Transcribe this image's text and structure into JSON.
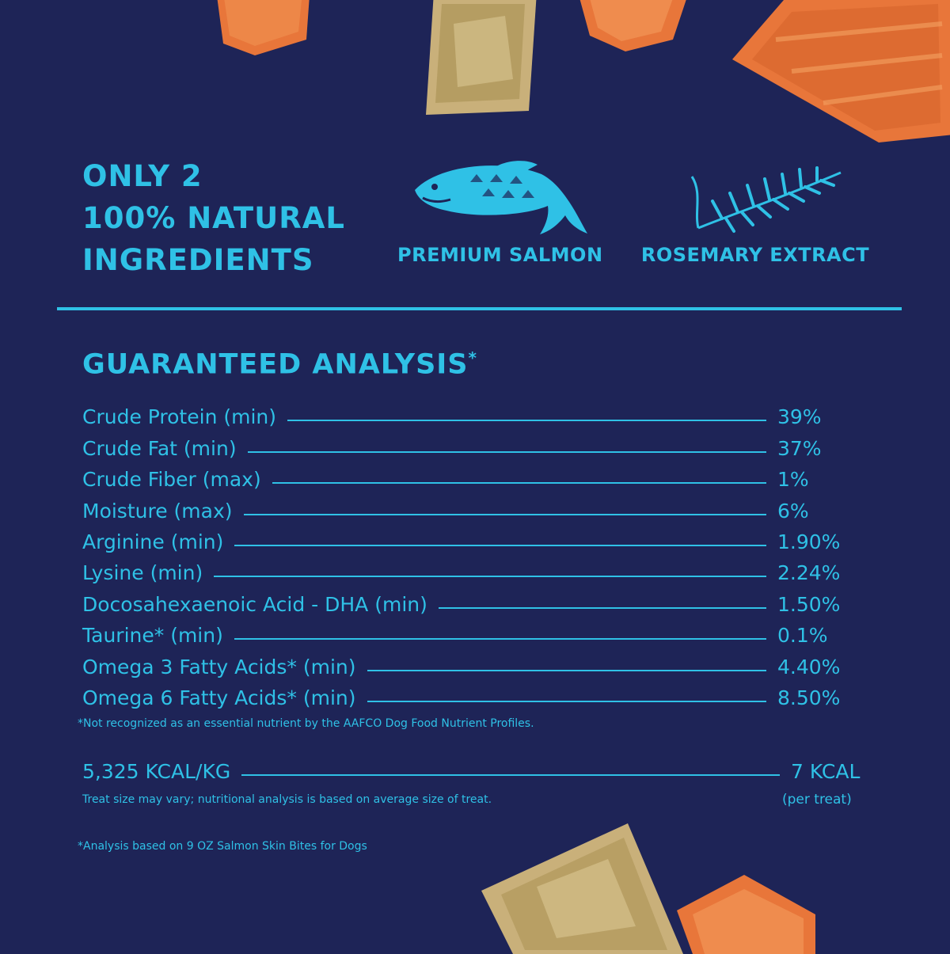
{
  "colors": {
    "background": "#1e2457",
    "accent": "#2fc1e6",
    "salmon": "#e8763a",
    "skin": "#c9b07a"
  },
  "headline": [
    "ONLY 2",
    "100% NATURAL",
    "INGREDIENTS"
  ],
  "ingredients": [
    {
      "icon": "salmon-fish-icon",
      "label": "PREMIUM SALMON"
    },
    {
      "icon": "rosemary-sprig-icon",
      "label": "ROSEMARY EXTRACT"
    }
  ],
  "analysis": {
    "title": "GUARANTEED ANALYSIS",
    "title_mark": "*",
    "rows": [
      {
        "name": "Crude Protein (min)",
        "value": "39%"
      },
      {
        "name": "Crude Fat (min)",
        "value": "37%"
      },
      {
        "name": "Crude Fiber (max)",
        "value": "1%"
      },
      {
        "name": "Moisture (max)",
        "value": "6%"
      },
      {
        "name": "Arginine (min)",
        "value": "1.90%"
      },
      {
        "name": "Lysine (min)",
        "value": "2.24%"
      },
      {
        "name": "Docosahexaenoic Acid - DHA (min)",
        "value": "1.50%"
      },
      {
        "name": "Taurine* (min)",
        "value": "0.1%"
      },
      {
        "name": "Omega 3 Fatty Acids* (min)",
        "value": "4.40%"
      },
      {
        "name": "Omega 6 Fatty Acids* (min)",
        "value": "8.50%"
      }
    ],
    "footnote": "*Not recognized as an essential nutrient by the AAFCO Dog Food Nutrient Profiles."
  },
  "calories": {
    "per_kg": "5,325 KCAL/KG",
    "per_treat": "7 KCAL",
    "per_treat_note": "(per treat)",
    "size_note": "Treat size may vary; nutritional analysis is based on average size of treat."
  },
  "basis_note": "*Analysis based on 9 OZ Salmon Skin Bites for Dogs"
}
